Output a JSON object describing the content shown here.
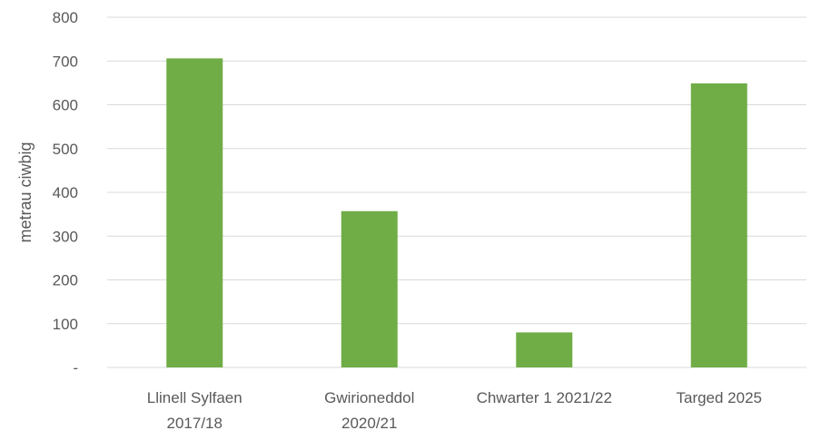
{
  "chart_data": {
    "type": "bar",
    "categories": [
      [
        "Llinell Sylfaen",
        "2017/18"
      ],
      [
        "Gwirioneddol",
        "2020/21"
      ],
      [
        "Chwarter 1 2021/22"
      ],
      [
        "Targed 2025"
      ]
    ],
    "values": [
      706,
      357,
      80,
      649
    ],
    "ylabel": "metrau ciwbig",
    "ylim": [
      0,
      800
    ],
    "yticks": [
      {
        "value": 0,
        "label": "-"
      },
      {
        "value": 100,
        "label": "100"
      },
      {
        "value": 200,
        "label": "200"
      },
      {
        "value": 300,
        "label": "300"
      },
      {
        "value": 400,
        "label": "400"
      },
      {
        "value": 500,
        "label": "500"
      },
      {
        "value": 600,
        "label": "600"
      },
      {
        "value": 700,
        "label": "700"
      },
      {
        "value": 800,
        "label": "800"
      }
    ],
    "grid": true,
    "legend": "none",
    "bar_color": "#70AD47",
    "grid_color": "#D9D9D9",
    "text_color": "#595959"
  }
}
